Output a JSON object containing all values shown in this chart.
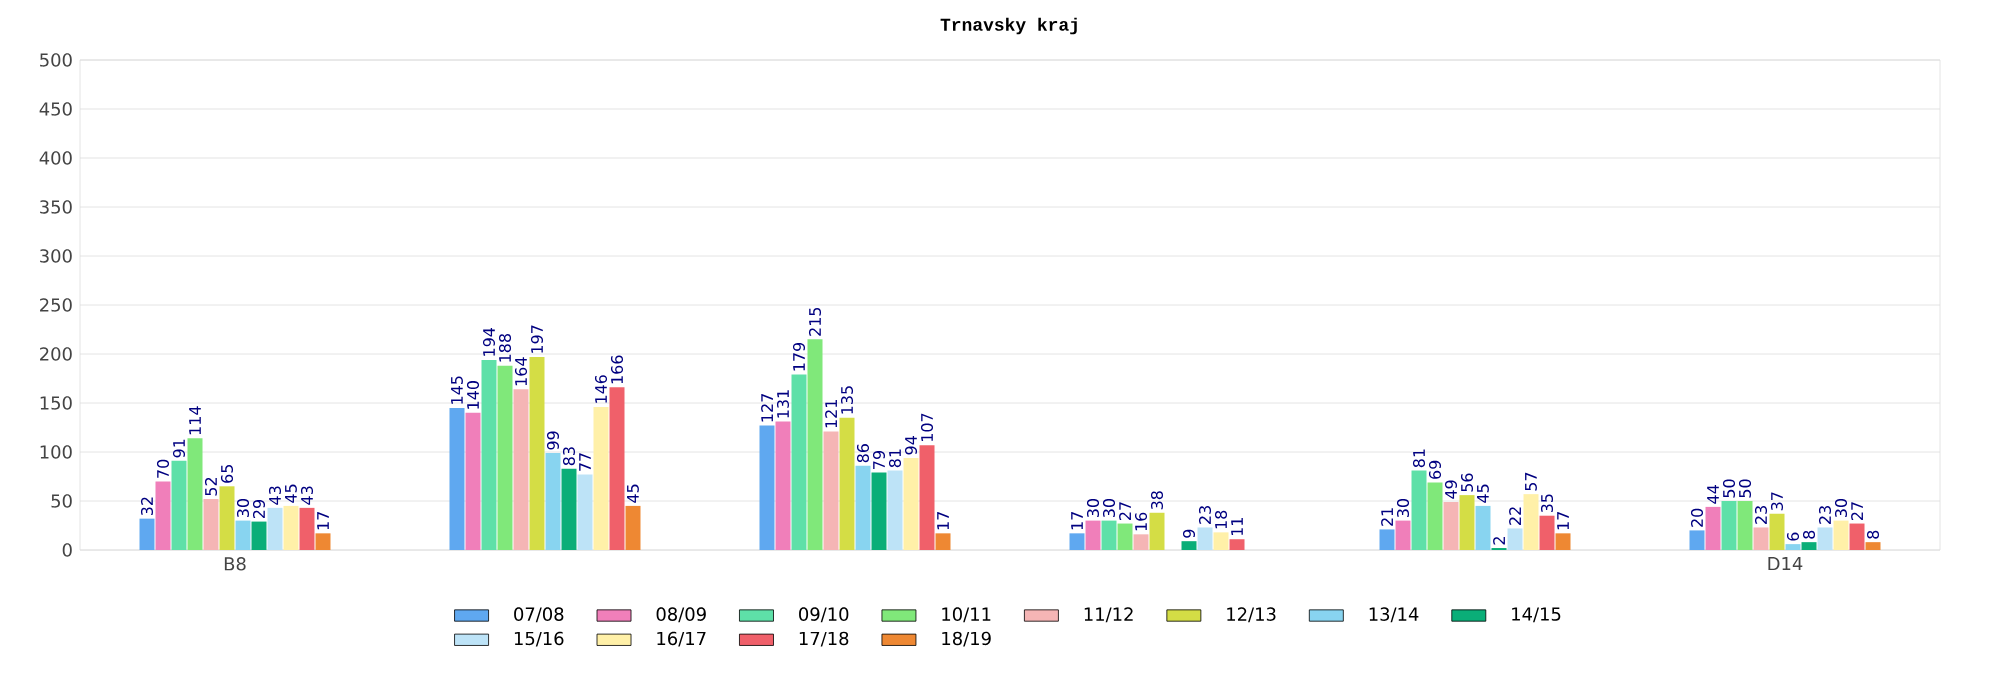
{
  "chart_data": {
    "type": "bar",
    "title": "Trnavsky kraj",
    "categories": [
      "B8",
      null,
      null,
      null,
      null,
      "D14"
    ],
    "series": [
      {
        "name": "07/08",
        "color": "#5fa8f0",
        "values": [
          32,
          145,
          127,
          17,
          21,
          20
        ]
      },
      {
        "name": "08/09",
        "color": "#f07fba",
        "values": [
          70,
          140,
          131,
          30,
          30,
          44
        ]
      },
      {
        "name": "09/10",
        "color": "#5ee0a8",
        "values": [
          91,
          194,
          179,
          30,
          81,
          50
        ]
      },
      {
        "name": "10/11",
        "color": "#80e87a",
        "values": [
          114,
          188,
          215,
          27,
          69,
          50
        ]
      },
      {
        "name": "11/12",
        "color": "#f5b5b5",
        "values": [
          52,
          164,
          121,
          16,
          49,
          23
        ]
      },
      {
        "name": "12/13",
        "color": "#d4dd45",
        "values": [
          65,
          197,
          135,
          38,
          56,
          37
        ]
      },
      {
        "name": "13/14",
        "color": "#88d4f0",
        "values": [
          30,
          99,
          86,
          null,
          45,
          6
        ]
      },
      {
        "name": "14/15",
        "color": "#0aae78",
        "values": [
          29,
          83,
          79,
          9,
          2,
          8
        ]
      },
      {
        "name": "15/16",
        "color": "#bde3f7",
        "values": [
          43,
          77,
          81,
          23,
          22,
          23
        ]
      },
      {
        "name": "16/17",
        "color": "#fff0a8",
        "values": [
          45,
          146,
          94,
          18,
          57,
          30
        ]
      },
      {
        "name": "17/18",
        "color": "#f0606a",
        "values": [
          43,
          166,
          107,
          11,
          35,
          27
        ]
      },
      {
        "name": "18/19",
        "color": "#ee8833",
        "values": [
          17,
          45,
          17,
          null,
          17,
          8
        ]
      }
    ],
    "ylim": [
      0,
      500
    ],
    "yticks": [
      0,
      50,
      100,
      150,
      200,
      250,
      300,
      350,
      400,
      450,
      500
    ],
    "grid": "y",
    "data_labels": true,
    "legend": "bottom"
  }
}
